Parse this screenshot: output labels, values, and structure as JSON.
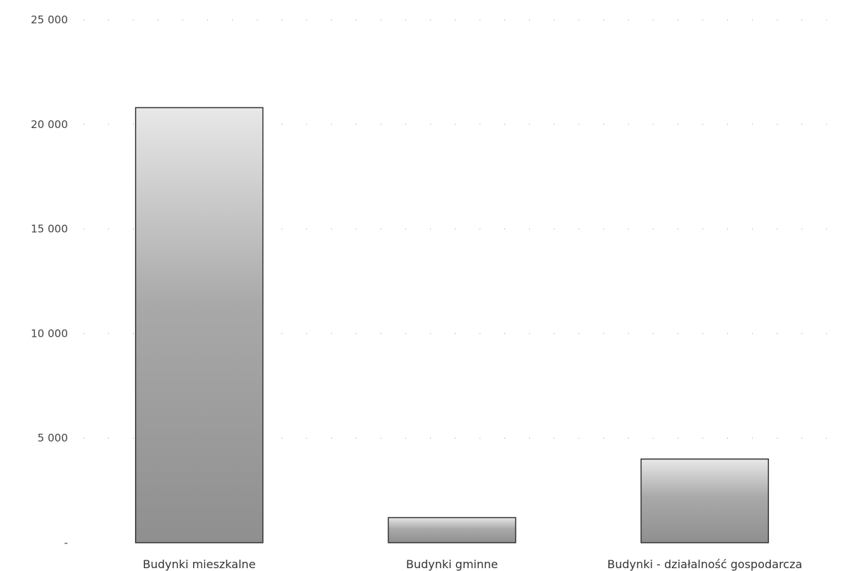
{
  "chart_data": {
    "type": "bar",
    "categories": [
      "Budynki mieszkalne",
      "Budynki gminne",
      "Budynki - działalność gospodarcza"
    ],
    "values": [
      20800,
      1200,
      4000
    ],
    "ylim": [
      0,
      25000
    ],
    "yticks": [
      0,
      5000,
      10000,
      15000,
      20000,
      25000
    ],
    "ytick_labels": [
      "-",
      "5 000",
      "10 000",
      "15 000",
      "20 000",
      "25 000"
    ],
    "grid": true,
    "colors": {
      "bar_dark": "#8f8f8f",
      "bar_light": "#e8e8e8",
      "outline": "#333333"
    }
  }
}
